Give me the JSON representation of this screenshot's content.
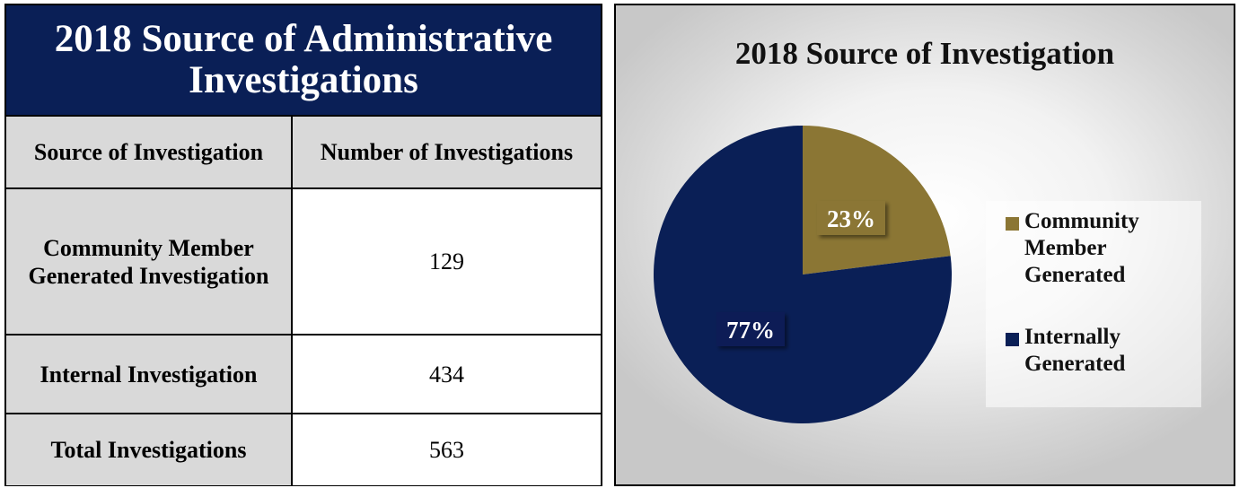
{
  "table": {
    "title": "2018 Source of Administrative Investigations",
    "headers": [
      "Source of Investigation",
      "Number of Investigations"
    ],
    "rows": [
      {
        "source": "Community Member Generated Investigation",
        "count": "129"
      },
      {
        "source": "Internal Investigation",
        "count": "434"
      },
      {
        "source": "Total Investigations",
        "count": "563"
      }
    ]
  },
  "chart_data": {
    "type": "pie",
    "title": "2018 Source of Investigation",
    "slices": [
      {
        "label": "Community Member Generated",
        "value": 23,
        "display": "23%",
        "color": "#8b7634"
      },
      {
        "label": "Internally Generated",
        "value": 77,
        "display": "77%",
        "color": "#0a1f56"
      }
    ],
    "legend_position": "right"
  }
}
